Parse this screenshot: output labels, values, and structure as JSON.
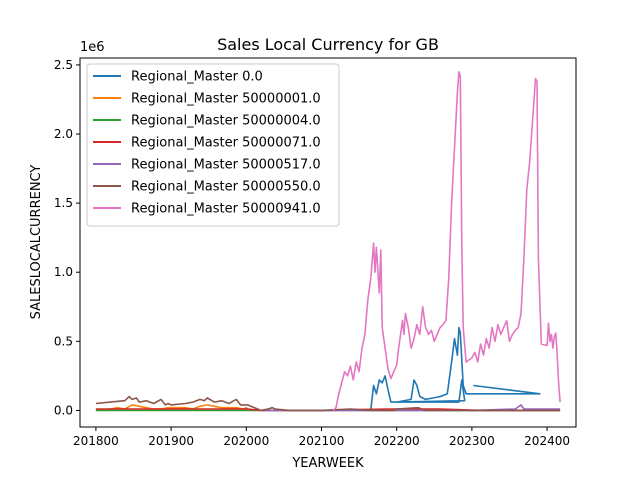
{
  "chart_data": {
    "type": "line",
    "title": "Sales Local Currency for GB",
    "xlabel": "YEARWEEK",
    "ylabel": "SALESLOCALCURRENCY",
    "y_offset_text": "1e6",
    "xlim": [
      201741,
      202420
    ],
    "ylim": [
      -0.12,
      2.55
    ],
    "y_scale": "1e6",
    "x_ticks": [
      201800,
      201900,
      202000,
      202100,
      202200,
      202300,
      202400
    ],
    "x_tick_labels": [
      "201800",
      "201900",
      "202000",
      "202100",
      "202200",
      "202300",
      "202400"
    ],
    "y_ticks": [
      0.0,
      0.5,
      1.0,
      1.5,
      2.0,
      2.5
    ],
    "y_tick_labels": [
      "0.0",
      "0.5",
      "1.0",
      "1.5",
      "2.0",
      "2.5"
    ],
    "grid": false,
    "legend_position": "upper-left",
    "series": [
      {
        "name": "Regional_Master 0.0",
        "color": "#1f77b4",
        "points": [
          [
            202134,
            0.0
          ],
          [
            202136,
            0.18
          ],
          [
            202138,
            0.12
          ],
          [
            202140,
            0.22
          ],
          [
            202142,
            0.2
          ],
          [
            202144,
            0.25
          ],
          [
            202146,
            0.15
          ],
          [
            202148,
            0.06
          ],
          [
            202160,
            0.06
          ],
          [
            202170,
            0.06
          ],
          [
            202180,
            0.06
          ],
          [
            202190,
            0.06
          ],
          [
            202195,
            0.06
          ],
          [
            202197,
            0.22
          ],
          [
            202199,
            0.07
          ],
          [
            202200,
            0.06
          ],
          [
            202210,
            0.08
          ],
          [
            202212,
            0.22
          ],
          [
            202214,
            0.18
          ],
          [
            202216,
            0.1
          ],
          [
            202220,
            0.08
          ],
          [
            202230,
            0.1
          ],
          [
            202235,
            0.12
          ],
          [
            202238,
            0.35
          ],
          [
            202240,
            0.52
          ],
          [
            202242,
            0.4
          ],
          [
            202243,
            0.6
          ],
          [
            202244,
            0.56
          ],
          [
            202246,
            0.18
          ],
          [
            202248,
            0.12
          ],
          [
            202260,
            0.12
          ],
          [
            202280,
            0.12
          ],
          [
            202299,
            0.12
          ],
          [
            202301,
            0.18
          ]
        ]
      },
      {
        "name": "Regional_Master 50000001.0",
        "color": "#ff7f0e",
        "points": [
          [
            201752,
            0.0
          ],
          [
            201800,
            0.0
          ],
          [
            201810,
            0.01
          ],
          [
            201815,
            0.02
          ],
          [
            201820,
            0.01
          ],
          [
            201825,
            0.04
          ],
          [
            201830,
            0.03
          ],
          [
            201835,
            0.02
          ],
          [
            201840,
            0.01
          ],
          [
            201845,
            0.01
          ],
          [
            201850,
            0.02
          ],
          [
            201900,
            0.02
          ],
          [
            201910,
            0.02
          ],
          [
            201915,
            0.01
          ],
          [
            201920,
            0.03
          ],
          [
            201925,
            0.04
          ],
          [
            201930,
            0.03
          ],
          [
            201935,
            0.02
          ],
          [
            201940,
            0.02
          ],
          [
            201945,
            0.02
          ],
          [
            201950,
            0.01
          ],
          [
            202000,
            0.02
          ],
          [
            202001,
            0.01
          ]
        ]
      },
      {
        "name": "Regional_Master 50000004.0",
        "color": "#2ca02c",
        "points": [
          [
            201752,
            0.0
          ],
          [
            201900,
            0.0
          ],
          [
            202010,
            0.0
          ],
          [
            202100,
            0.0
          ],
          [
            202200,
            0.0
          ],
          [
            202300,
            0.0
          ],
          [
            202409,
            0.0
          ]
        ]
      },
      {
        "name": "Regional_Master 50000071.0",
        "color": "#d62728",
        "points": [
          [
            201752,
            0.01
          ],
          [
            201850,
            0.01
          ],
          [
            201950,
            0.01
          ],
          [
            202001,
            0.01
          ],
          [
            202010,
            0.0
          ],
          [
            202030,
            0.0
          ],
          [
            202100,
            0.0
          ],
          [
            202120,
            0.005
          ],
          [
            202150,
            0.01
          ],
          [
            202200,
            0.01
          ],
          [
            202230,
            0.01
          ],
          [
            202260,
            0.0
          ],
          [
            202300,
            0.0
          ],
          [
            202409,
            0.0
          ]
        ]
      },
      {
        "name": "Regional_Master 50000517.0",
        "color": "#9467bd",
        "points": [
          [
            202012,
            0.0
          ],
          [
            202100,
            0.0
          ],
          [
            202200,
            0.0
          ],
          [
            202300,
            0.0
          ],
          [
            202330,
            0.01
          ],
          [
            202334,
            0.04
          ],
          [
            202336,
            0.01
          ],
          [
            202350,
            0.01
          ],
          [
            202400,
            0.01
          ],
          [
            202409,
            0.01
          ]
        ]
      },
      {
        "name": "Regional_Master 50000550.0",
        "color": "#8c564b",
        "points": [
          [
            201752,
            0.05
          ],
          [
            201800,
            0.05
          ],
          [
            201810,
            0.06
          ],
          [
            201820,
            0.07
          ],
          [
            201823,
            0.1
          ],
          [
            201825,
            0.08
          ],
          [
            201828,
            0.09
          ],
          [
            201830,
            0.06
          ],
          [
            201835,
            0.07
          ],
          [
            201840,
            0.05
          ],
          [
            201845,
            0.08
          ],
          [
            201848,
            0.04
          ],
          [
            201850,
            0.05
          ],
          [
            201900,
            0.04
          ],
          [
            201910,
            0.05
          ],
          [
            201915,
            0.06
          ],
          [
            201920,
            0.08
          ],
          [
            201923,
            0.07
          ],
          [
            201925,
            0.09
          ],
          [
            201930,
            0.06
          ],
          [
            201935,
            0.07
          ],
          [
            201940,
            0.05
          ],
          [
            201945,
            0.08
          ],
          [
            201948,
            0.04
          ],
          [
            201950,
            0.04
          ],
          [
            202000,
            0.04
          ],
          [
            202001,
            0.04
          ],
          [
            202010,
            0.0
          ],
          [
            202015,
            0.01
          ],
          [
            202018,
            0.02
          ],
          [
            202020,
            0.01
          ],
          [
            202030,
            0.0
          ],
          [
            202100,
            0.0
          ],
          [
            202120,
            0.01
          ],
          [
            202135,
            0.0
          ],
          [
            202150,
            0.0
          ],
          [
            202200,
            0.01
          ],
          [
            202215,
            0.02
          ],
          [
            202220,
            0.0
          ],
          [
            202300,
            0.0
          ],
          [
            202400,
            0.0
          ],
          [
            202409,
            0.0
          ]
        ]
      },
      {
        "name": "Regional_Master 50000941.0",
        "color": "#e377c2",
        "points": [
          [
            202108,
            0.0
          ],
          [
            202110,
            0.02
          ],
          [
            202112,
            0.12
          ],
          [
            202114,
            0.2
          ],
          [
            202116,
            0.28
          ],
          [
            202118,
            0.25
          ],
          [
            202120,
            0.32
          ],
          [
            202122,
            0.22
          ],
          [
            202124,
            0.35
          ],
          [
            202126,
            0.28
          ],
          [
            202128,
            0.45
          ],
          [
            202130,
            0.55
          ],
          [
            202132,
            0.8
          ],
          [
            202134,
            0.95
          ],
          [
            202136,
            1.21
          ],
          [
            202137,
            1.0
          ],
          [
            202138,
            1.18
          ],
          [
            202140,
            0.85
          ],
          [
            202141,
            1.16
          ],
          [
            202142,
            0.6
          ],
          [
            202144,
            0.45
          ],
          [
            202146,
            0.3
          ],
          [
            202148,
            0.23
          ],
          [
            202200,
            0.33
          ],
          [
            202201,
            0.42
          ],
          [
            202202,
            0.5
          ],
          [
            202204,
            0.65
          ],
          [
            202205,
            0.55
          ],
          [
            202206,
            0.7
          ],
          [
            202208,
            0.6
          ],
          [
            202210,
            0.45
          ],
          [
            202212,
            0.52
          ],
          [
            202214,
            0.62
          ],
          [
            202216,
            0.55
          ],
          [
            202218,
            0.75
          ],
          [
            202220,
            0.6
          ],
          [
            202222,
            0.55
          ],
          [
            202224,
            0.58
          ],
          [
            202226,
            0.5
          ],
          [
            202228,
            0.55
          ],
          [
            202230,
            0.6
          ],
          [
            202232,
            0.62
          ],
          [
            202234,
            0.65
          ],
          [
            202236,
            0.95
          ],
          [
            202238,
            1.5
          ],
          [
            202240,
            1.9
          ],
          [
            202242,
            2.3
          ],
          [
            202243,
            2.45
          ],
          [
            202244,
            2.42
          ],
          [
            202245,
            1.2
          ],
          [
            202246,
            0.6
          ],
          [
            202248,
            0.35
          ],
          [
            202300,
            0.38
          ],
          [
            202302,
            0.42
          ],
          [
            202304,
            0.35
          ],
          [
            202306,
            0.48
          ],
          [
            202308,
            0.4
          ],
          [
            202310,
            0.52
          ],
          [
            202312,
            0.45
          ],
          [
            202314,
            0.6
          ],
          [
            202316,
            0.5
          ],
          [
            202318,
            0.62
          ],
          [
            202320,
            0.55
          ],
          [
            202322,
            0.6
          ],
          [
            202324,
            0.65
          ],
          [
            202326,
            0.5
          ],
          [
            202328,
            0.55
          ],
          [
            202330,
            0.58
          ],
          [
            202332,
            0.6
          ],
          [
            202334,
            0.7
          ],
          [
            202336,
            1.1
          ],
          [
            202338,
            1.6
          ],
          [
            202340,
            1.8
          ],
          [
            202342,
            2.1
          ],
          [
            202344,
            2.4
          ],
          [
            202345,
            2.38
          ],
          [
            202346,
            1.1
          ],
          [
            202348,
            0.48
          ],
          [
            202400,
            0.47
          ],
          [
            202401,
            0.63
          ],
          [
            202402,
            0.5
          ],
          [
            202403,
            0.55
          ],
          [
            202404,
            0.45
          ],
          [
            202405,
            0.53
          ],
          [
            202406,
            0.56
          ],
          [
            202407,
            0.4
          ],
          [
            202408,
            0.2
          ],
          [
            202409,
            0.06
          ]
        ]
      }
    ]
  }
}
